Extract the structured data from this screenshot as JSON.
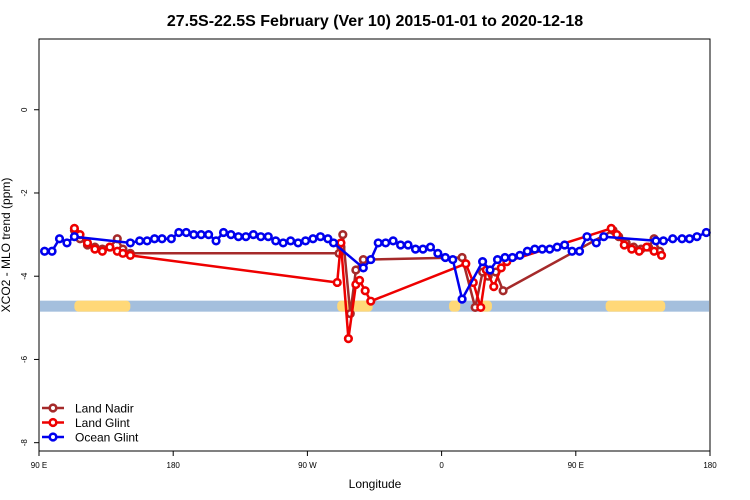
{
  "chart_data": {
    "type": "line",
    "title": "27.5S-22.5S February (Ver 10)   2015-01-01 to 2020-12-18",
    "xlabel": "Longitude",
    "ylabel": "XCO2 - MLO trend (ppm)",
    "xlim": [
      0,
      360
    ],
    "ylim": [
      -8.2,
      1.7
    ],
    "x_ticks": [
      {
        "value": 0,
        "label": "90 E"
      },
      {
        "value": 72,
        "label": "180"
      },
      {
        "value": 144,
        "label": "90 W"
      },
      {
        "value": 216,
        "label": "0"
      },
      {
        "value": 288,
        "label": "90 E"
      },
      {
        "value": 360,
        "label": "180"
      }
    ],
    "y_ticks": [
      {
        "value": 0,
        "label": "0"
      },
      {
        "value": -2,
        "label": "-2"
      },
      {
        "value": -4,
        "label": "-4"
      },
      {
        "value": -6,
        "label": "-6"
      },
      {
        "value": -8,
        "label": "-8"
      }
    ],
    "land_mask": {
      "y_center": -4.72,
      "band_color": "#A4BFDD",
      "land_color": "#FFD878",
      "land_segments": [
        [
          19,
          49
        ],
        [
          160,
          179
        ],
        [
          220,
          226
        ],
        [
          236,
          243
        ],
        [
          304,
          336
        ]
      ]
    },
    "legend_position": "bottom-left",
    "series": [
      {
        "name": "Land Nadir",
        "color": "#A52A2A",
        "x": [
          19,
          22,
          26,
          30,
          34,
          38,
          42,
          45,
          49,
          161,
          162,
          163,
          167,
          170,
          174,
          227,
          234,
          238,
          241,
          245,
          249,
          308,
          311,
          315,
          319,
          323,
          327,
          330,
          333
        ],
        "y": [
          -2.9,
          -3.1,
          -3.25,
          -3.3,
          -3.35,
          -3.3,
          -3.1,
          -3.35,
          -3.45,
          -3.45,
          -3.3,
          -3.0,
          -4.9,
          -3.85,
          -3.6,
          -3.55,
          -4.75,
          -3.9,
          -4.0,
          -3.9,
          -4.35,
          -2.9,
          -3.05,
          -3.2,
          -3.3,
          -3.35,
          -3.3,
          -3.1,
          -3.4
        ]
      },
      {
        "name": "Land Glint",
        "color": "#EE0000",
        "x": [
          19,
          22,
          26,
          30,
          34,
          38,
          42,
          45,
          49,
          160,
          162,
          166,
          170,
          172,
          175,
          178,
          229,
          233,
          237,
          240,
          244,
          248,
          251,
          307,
          310,
          314,
          318,
          322,
          326,
          330,
          334
        ],
        "y": [
          -2.85,
          -3.0,
          -3.2,
          -3.35,
          -3.4,
          -3.3,
          -3.4,
          -3.45,
          -3.5,
          -4.15,
          -3.2,
          -5.5,
          -4.2,
          -4.1,
          -4.35,
          -4.6,
          -3.7,
          -4.15,
          -4.75,
          -3.85,
          -4.25,
          -3.8,
          -3.65,
          -2.85,
          -3.0,
          -3.25,
          -3.35,
          -3.4,
          -3.3,
          -3.4,
          -3.5
        ]
      },
      {
        "name": "Ocean Glint",
        "color": "#0000EE",
        "x": [
          3,
          7,
          11,
          15,
          19,
          49,
          54,
          58,
          62,
          66,
          71,
          75,
          79,
          83,
          87,
          91,
          95,
          99,
          103,
          107,
          111,
          115,
          119,
          123,
          127,
          131,
          135,
          139,
          143,
          147,
          151,
          155,
          158,
          174,
          178,
          182,
          186,
          190,
          194,
          198,
          202,
          206,
          210,
          214,
          218,
          222,
          227,
          238,
          242,
          246,
          250,
          254,
          258,
          262,
          266,
          270,
          274,
          278,
          282,
          286,
          290,
          294,
          299,
          303,
          331,
          335,
          340,
          345,
          349,
          353,
          358
        ],
        "y": [
          -3.4,
          -3.4,
          -3.1,
          -3.2,
          -3.05,
          -3.2,
          -3.15,
          -3.15,
          -3.1,
          -3.1,
          -3.1,
          -2.95,
          -2.95,
          -3.0,
          -3.0,
          -3.0,
          -3.15,
          -2.95,
          -3.0,
          -3.05,
          -3.05,
          -3.0,
          -3.05,
          -3.05,
          -3.15,
          -3.2,
          -3.15,
          -3.2,
          -3.15,
          -3.1,
          -3.05,
          -3.1,
          -3.2,
          -3.8,
          -3.6,
          -3.2,
          -3.2,
          -3.15,
          -3.25,
          -3.25,
          -3.35,
          -3.35,
          -3.3,
          -3.45,
          -3.55,
          -3.6,
          -4.55,
          -3.65,
          -3.85,
          -3.6,
          -3.55,
          -3.55,
          -3.5,
          -3.4,
          -3.35,
          -3.35,
          -3.35,
          -3.3,
          -3.25,
          -3.4,
          -3.4,
          -3.05,
          -3.2,
          -3.05,
          -3.15,
          -3.15,
          -3.1,
          -3.1,
          -3.1,
          -3.05,
          -2.95
        ]
      }
    ]
  }
}
